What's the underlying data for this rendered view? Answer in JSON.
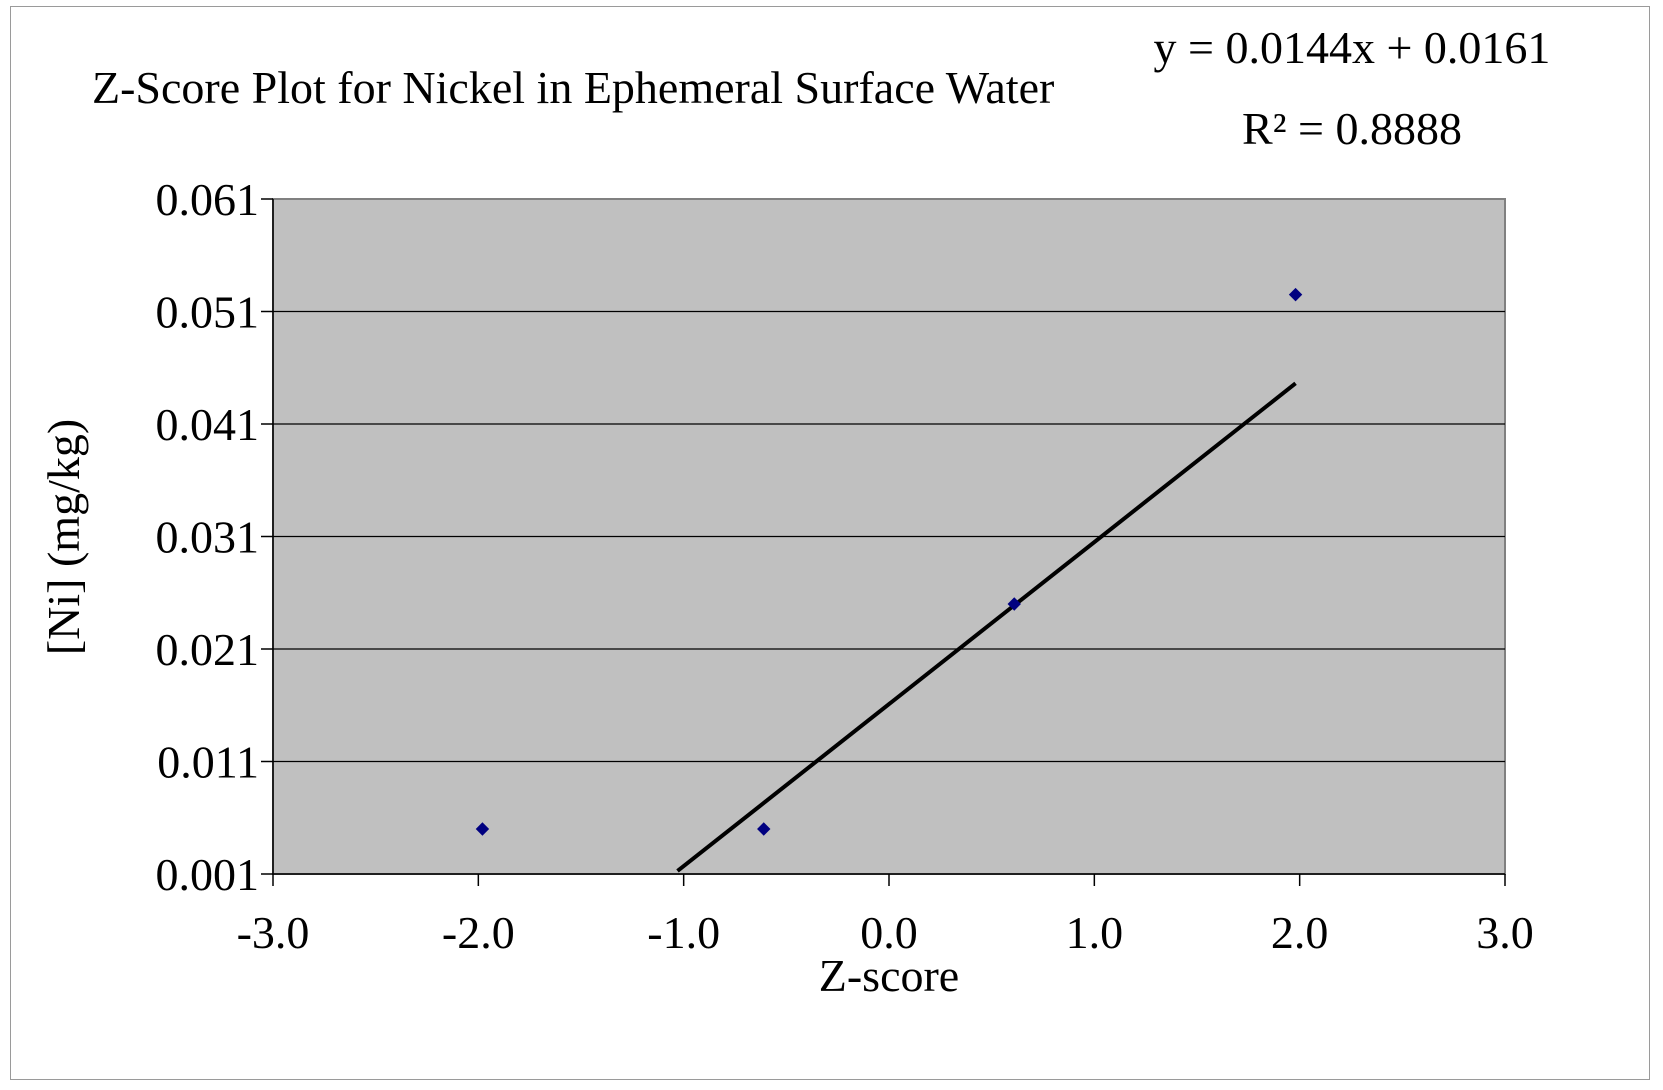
{
  "chart_data": {
    "type": "scatter",
    "title": "Z-Score Plot for Nickel in Ephemeral Surface Water",
    "xlabel": "Z-score",
    "ylabel": "[Ni] (mg/kg)",
    "xlim": [
      -3.0,
      3.0
    ],
    "ylim": [
      0.001,
      0.061
    ],
    "x_ticks": [
      "-3.0",
      "-2.0",
      "-1.0",
      "0.0",
      "1.0",
      "2.0",
      "3.0"
    ],
    "y_ticks": [
      "0.001",
      "0.011",
      "0.021",
      "0.031",
      "0.041",
      "0.051",
      "0.061"
    ],
    "grid": true,
    "series": [
      {
        "points": [
          {
            "x": -1.98,
            "y": 0.005
          },
          {
            "x": -0.61,
            "y": 0.005
          },
          {
            "x": 0.61,
            "y": 0.025
          },
          {
            "x": 1.98,
            "y": 0.0525
          }
        ],
        "color": "#000080"
      }
    ],
    "trendline": {
      "slope": 0.0144,
      "intercept": 0.0161,
      "x_range": [
        -1.03,
        1.98
      ],
      "color": "#000000",
      "equation": "y = 0.0144x + 0.0161",
      "r_squared": "R² = 0.8888"
    },
    "plot_background": "#c0c0c0"
  }
}
